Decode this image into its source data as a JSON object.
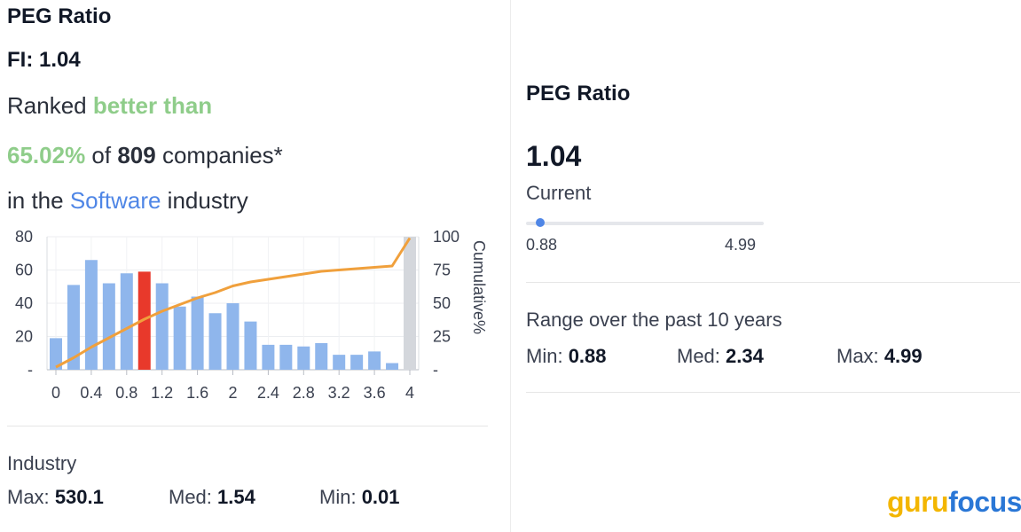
{
  "left": {
    "title": "PEG Ratio",
    "ticker_line": "FI: 1.04",
    "ranked_prefix": "Ranked ",
    "ranked_highlight": "better than",
    "percent": "65.02%",
    "of_text": " of ",
    "company_count": "809",
    "companies_text": " companies*",
    "in_the": "in the ",
    "industry_name": "Software",
    "industry_word": " industry",
    "industry_label": "Industry",
    "industry_stats": [
      {
        "label": "Max:",
        "value": "530.1"
      },
      {
        "label": "Med:",
        "value": "1.54"
      },
      {
        "label": "Min:",
        "value": "0.01"
      }
    ]
  },
  "right": {
    "title": "PEG Ratio",
    "current_value": "1.04",
    "current_label": "Current",
    "range_min_label": "0.88",
    "range_max_label": "4.99",
    "range_caption": "Range over the past 10 years",
    "range_stats": [
      {
        "label": "Min:",
        "value": "0.88"
      },
      {
        "label": "Med:",
        "value": "2.34"
      },
      {
        "label": "Max:",
        "value": "4.99"
      }
    ],
    "slider_position_fraction": 0.0
  },
  "logo": {
    "guru": "guru",
    "focus": "focus"
  },
  "colors": {
    "bar": "#8fb6ec",
    "highlight_bar": "#e8392b",
    "last_bar": "#d4d7dc",
    "cumulative_line": "#f0a03c",
    "green": "#8fcd8a",
    "blue": "#4f86e6"
  },
  "chart_data": {
    "type": "bar",
    "title": "",
    "xlabel": "",
    "ylabel": "",
    "y2label": "Cumulative%",
    "ylim": [
      0,
      80
    ],
    "y2lim": [
      0,
      100
    ],
    "yticks": [
      "-",
      "20",
      "40",
      "60",
      "80"
    ],
    "y2ticks": [
      "-",
      "25",
      "50",
      "75",
      "100"
    ],
    "xticks": [
      "0",
      "0.4",
      "0.8",
      "1.2",
      "1.6",
      "2",
      "2.4",
      "2.8",
      "3.2",
      "3.6",
      "4"
    ],
    "series": [
      {
        "name": "Companies",
        "type": "bar",
        "x": [
          0,
          0.2,
          0.4,
          0.6,
          0.8,
          1.0,
          1.2,
          1.4,
          1.6,
          1.8,
          2.0,
          2.2,
          2.4,
          2.6,
          2.8,
          3.0,
          3.2,
          3.4,
          3.6,
          3.8,
          4.0
        ],
        "values": [
          19,
          51,
          66,
          52,
          58,
          59,
          52,
          38,
          44,
          34,
          40,
          29,
          15,
          15,
          14,
          16,
          9,
          9,
          11,
          4,
          80
        ],
        "highlight_index": 5,
        "overflow_index": 20
      },
      {
        "name": "Cumulative%",
        "type": "line",
        "axis": "right",
        "x": [
          0,
          0.2,
          0.4,
          0.6,
          0.8,
          1.0,
          1.2,
          1.4,
          1.6,
          1.8,
          2.0,
          2.2,
          2.4,
          2.6,
          2.8,
          3.0,
          3.2,
          3.4,
          3.6,
          3.8,
          4.0
        ],
        "values": [
          2,
          9,
          17,
          24,
          31,
          38,
          44,
          49,
          54,
          58,
          63,
          66,
          68,
          70,
          72,
          74,
          75,
          76,
          77,
          78,
          99
        ]
      }
    ]
  }
}
